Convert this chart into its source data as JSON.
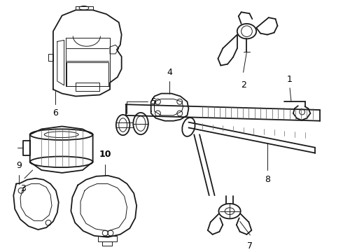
{
  "bg_color": "#ffffff",
  "line_color": "#1a1a1a",
  "label_color": "#000000",
  "figsize": [
    4.9,
    3.6
  ],
  "dpi": 100,
  "lw_main": 1.3,
  "lw_thin": 0.7,
  "lw_thick": 2.0
}
